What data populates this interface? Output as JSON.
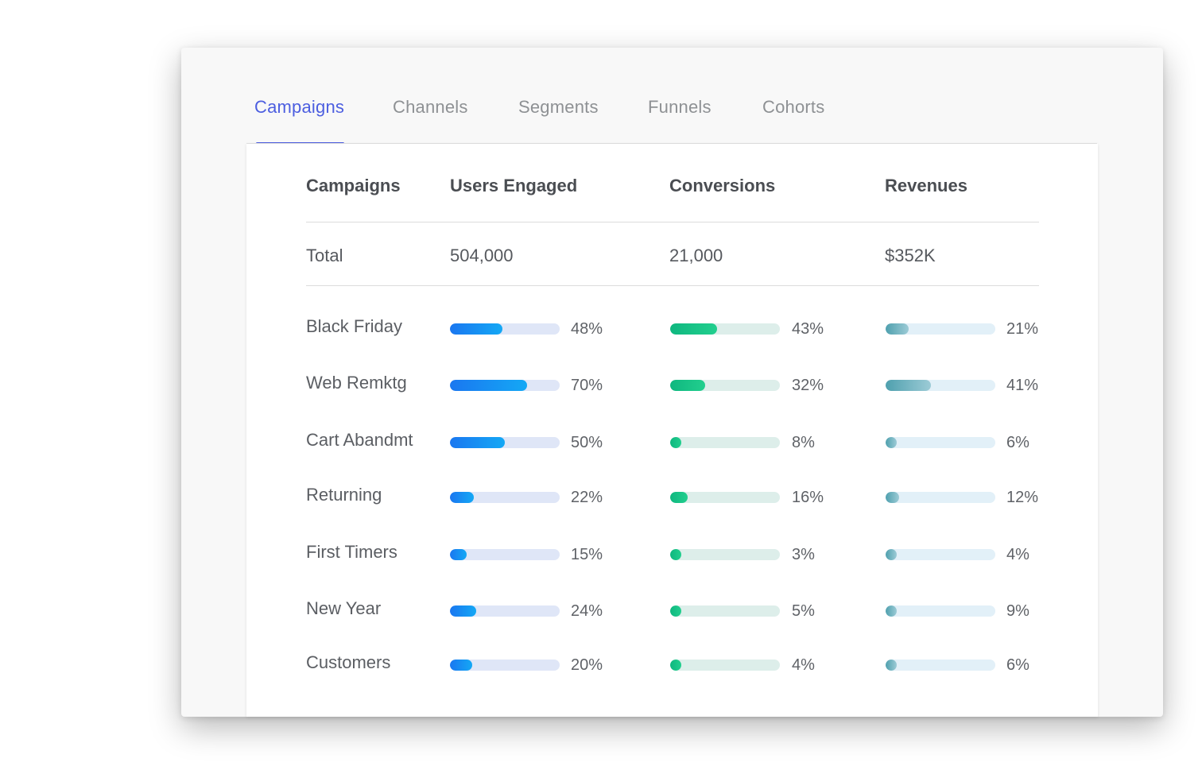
{
  "tabs": [
    {
      "label": "Campaigns",
      "active": true
    },
    {
      "label": "Channels",
      "active": false
    },
    {
      "label": "Segments",
      "active": false
    },
    {
      "label": "Funnels",
      "active": false
    },
    {
      "label": "Cohorts",
      "active": false
    }
  ],
  "table": {
    "columns": [
      "Campaigns",
      "Users Engaged",
      "Conversions",
      "Revenues"
    ],
    "total": {
      "label": "Total",
      "users_engaged": "504,000",
      "conversions": "21,000",
      "revenues": "$352K"
    },
    "rows": [
      {
        "name": "Black Friday",
        "users_engaged": 48,
        "conversions": 43,
        "revenues": 21
      },
      {
        "name": "Web Remktg",
        "users_engaged": 70,
        "conversions": 32,
        "revenues": 41
      },
      {
        "name": "Cart Abandmt",
        "users_engaged": 50,
        "conversions": 8,
        "revenues": 6
      },
      {
        "name": "Returning",
        "users_engaged": 22,
        "conversions": 16,
        "revenues": 12
      },
      {
        "name": "First Timers",
        "users_engaged": 15,
        "conversions": 3,
        "revenues": 4
      },
      {
        "name": "New Year",
        "users_engaged": 24,
        "conversions": 5,
        "revenues": 9
      },
      {
        "name": "Customers",
        "users_engaged": 20,
        "conversions": 4,
        "revenues": 6
      }
    ]
  },
  "colors": {
    "accent": "#4c5ee0",
    "users_bar": "#1a77f0",
    "conversions_bar": "#0fb77f",
    "revenues_bar": "#4fa0ae"
  }
}
